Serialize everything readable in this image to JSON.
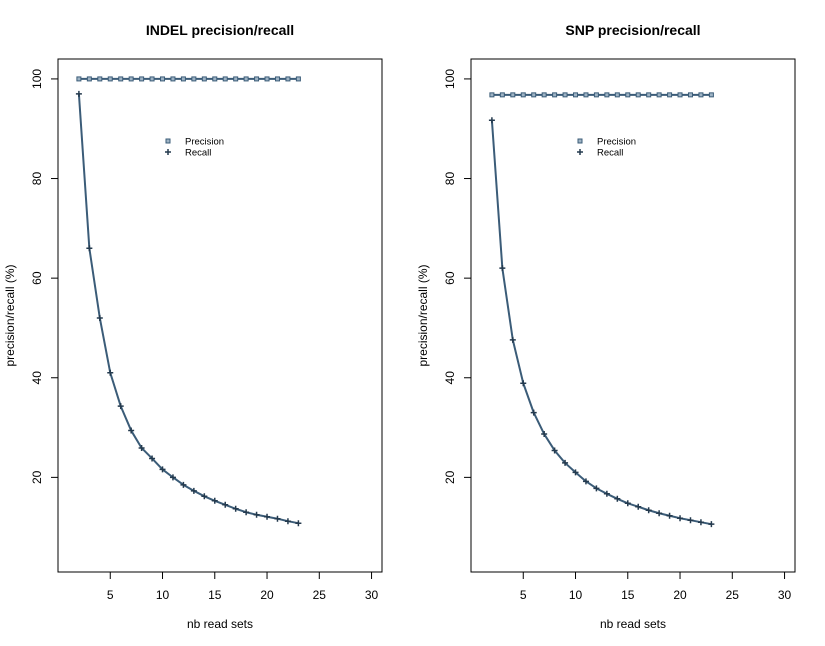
{
  "chart_data": [
    {
      "type": "line",
      "title": "INDEL precision/recall",
      "xlabel": "nb read sets",
      "ylabel": "precision/recall (%)",
      "xlim": [
        0,
        31
      ],
      "ylim": [
        1,
        104
      ],
      "xticks": [
        5,
        10,
        15,
        20,
        25,
        30
      ],
      "yticks": [
        20,
        40,
        60,
        80,
        100
      ],
      "legend": "upper-center",
      "line_color": "#3b5c78",
      "x": [
        2,
        3,
        4,
        5,
        6,
        7,
        8,
        9,
        10,
        11,
        12,
        13,
        14,
        15,
        16,
        17,
        18,
        19,
        20,
        21,
        22,
        23
      ],
      "series": [
        {
          "name": "Precision",
          "marker": "square",
          "values": [
            100,
            100,
            100,
            100,
            100,
            100,
            100,
            100,
            100,
            100,
            100,
            100,
            100,
            100,
            100,
            100,
            100,
            100,
            100,
            100,
            100,
            100
          ]
        },
        {
          "name": "Recall",
          "marker": "plus",
          "values": [
            97,
            66,
            52,
            41,
            34.3,
            29.4,
            25.9,
            23.8,
            21.6,
            20,
            18.5,
            17.3,
            16.2,
            15.3,
            14.5,
            13.7,
            13,
            12.5,
            12.1,
            11.7,
            11.2,
            10.8
          ]
        }
      ]
    },
    {
      "type": "line",
      "title": "SNP precision/recall",
      "xlabel": "nb read sets",
      "ylabel": "precision/recall (%)",
      "xlim": [
        0,
        31
      ],
      "ylim": [
        1,
        104
      ],
      "xticks": [
        5,
        10,
        15,
        20,
        25,
        30
      ],
      "yticks": [
        20,
        40,
        60,
        80,
        100
      ],
      "legend": "upper-center",
      "line_color": "#3b5c78",
      "x": [
        2,
        3,
        4,
        5,
        6,
        7,
        8,
        9,
        10,
        11,
        12,
        13,
        14,
        15,
        16,
        17,
        18,
        19,
        20,
        21,
        22,
        23
      ],
      "series": [
        {
          "name": "Precision",
          "marker": "square",
          "values": [
            96.8,
            96.8,
            96.8,
            96.8,
            96.8,
            96.8,
            96.8,
            96.8,
            96.8,
            96.8,
            96.8,
            96.8,
            96.8,
            96.8,
            96.8,
            96.8,
            96.8,
            96.8,
            96.8,
            96.8,
            96.8,
            96.8
          ]
        },
        {
          "name": "Recall",
          "marker": "plus",
          "values": [
            91.7,
            62,
            47.6,
            38.9,
            33,
            28.7,
            25.4,
            22.9,
            21,
            19.2,
            17.8,
            16.7,
            15.7,
            14.8,
            14.1,
            13.4,
            12.8,
            12.3,
            11.8,
            11.4,
            11,
            10.6
          ]
        }
      ]
    }
  ]
}
